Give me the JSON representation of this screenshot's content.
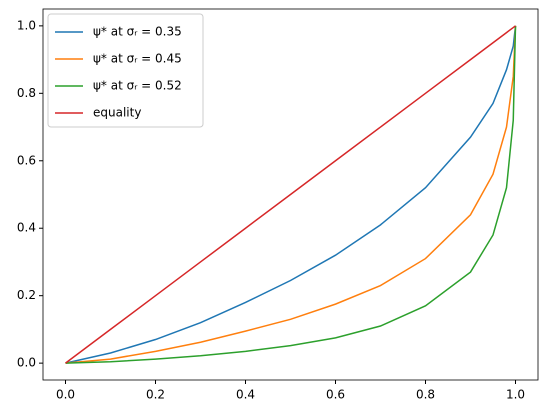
{
  "chart_data": {
    "type": "line",
    "x": [
      0,
      0.1,
      0.2,
      0.3,
      0.4,
      0.5,
      0.6,
      0.7,
      0.8,
      0.9,
      0.95,
      0.98,
      0.995,
      1
    ],
    "series": [
      {
        "name": "ψ* at σᵣ = 0.35",
        "color": "#1f77b4",
        "values": [
          0,
          0.03,
          0.07,
          0.12,
          0.18,
          0.245,
          0.32,
          0.41,
          0.52,
          0.67,
          0.77,
          0.87,
          0.94,
          1
        ]
      },
      {
        "name": "ψ* at σᵣ = 0.45",
        "color": "#ff7f0e",
        "values": [
          0,
          0.012,
          0.035,
          0.062,
          0.095,
          0.13,
          0.175,
          0.23,
          0.31,
          0.44,
          0.56,
          0.7,
          0.85,
          1
        ]
      },
      {
        "name": "ψ* at σᵣ = 0.52",
        "color": "#2ca02c",
        "values": [
          0,
          0.004,
          0.012,
          0.022,
          0.035,
          0.052,
          0.075,
          0.11,
          0.17,
          0.27,
          0.38,
          0.52,
          0.72,
          1
        ]
      },
      {
        "name": "equality",
        "color": "#d62728",
        "values": [
          0,
          0.1,
          0.2,
          0.3,
          0.4,
          0.5,
          0.6,
          0.7,
          0.8,
          0.9,
          0.95,
          0.98,
          0.995,
          1
        ]
      }
    ],
    "xlim": [
      -0.05,
      1.05
    ],
    "ylim": [
      -0.05,
      1.05
    ],
    "xticks": [
      {
        "value": 0,
        "label": "0.0"
      },
      {
        "value": 0.2,
        "label": "0.2"
      },
      {
        "value": 0.4,
        "label": "0.4"
      },
      {
        "value": 0.6,
        "label": "0.6"
      },
      {
        "value": 0.8,
        "label": "0.8"
      },
      {
        "value": 1,
        "label": "1.0"
      }
    ],
    "yticks": [
      {
        "value": 0,
        "label": "0.0"
      },
      {
        "value": 0.2,
        "label": "0.2"
      },
      {
        "value": 0.4,
        "label": "0.4"
      },
      {
        "value": 0.6,
        "label": "0.6"
      },
      {
        "value": 0.8,
        "label": "0.8"
      },
      {
        "value": 1,
        "label": "1.0"
      }
    ],
    "legend": "upper left"
  }
}
